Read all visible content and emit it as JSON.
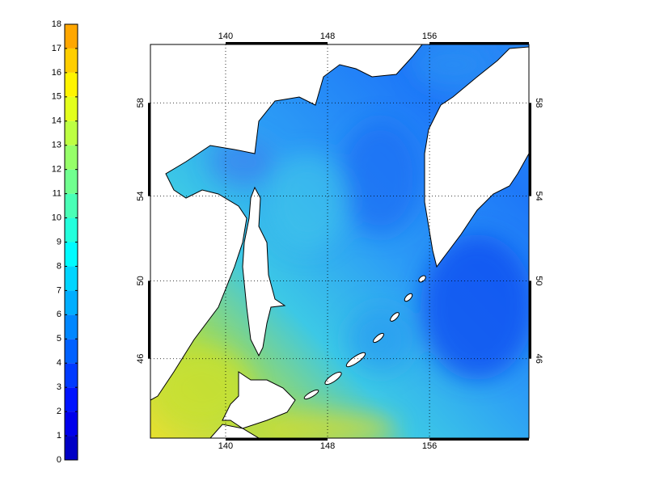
{
  "colorbar": {
    "ticks": [
      0,
      1,
      2,
      3,
      4,
      5,
      6,
      7,
      8,
      9,
      10,
      11,
      12,
      13,
      14,
      15,
      16,
      17,
      18
    ],
    "lim": [
      0,
      18
    ]
  },
  "map": {
    "lon_ticks": [
      140,
      148,
      156
    ],
    "lat_ticks": [
      46,
      50,
      54,
      58
    ],
    "lonlim": [
      134.1,
      163.8
    ],
    "latlim": [
      41.6,
      60.3
    ]
  }
}
